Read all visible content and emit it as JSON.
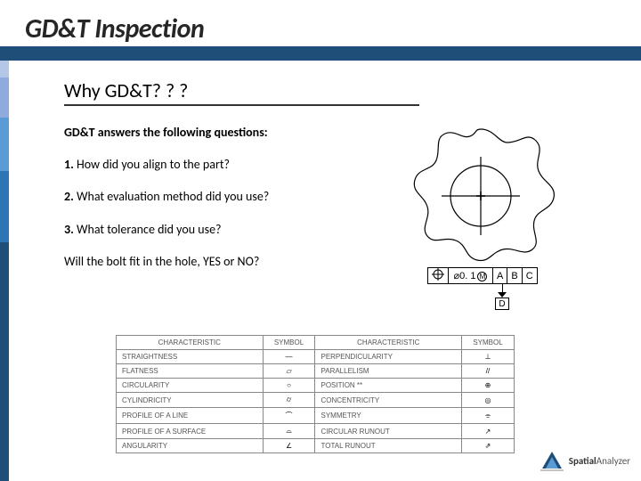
{
  "title": "GD&T Inspection",
  "subheading": "Why GD&T? ? ?",
  "lead": "GD&T answers the following questions:",
  "q1_num": "1.",
  "q1": " How did you align to the part?",
  "q2_num": "2.",
  "q2": " What evaluation method did you use?",
  "q3_num": "3.",
  "q3": " What tolerance did you use?",
  "closing": "Will the bolt fit in the hole, YES or NO?",
  "fcf": {
    "tol": "0. 1",
    "mod": "M",
    "d1": "A",
    "d2": "B",
    "d3": "C",
    "flag": "D"
  },
  "char_table": {
    "headers": [
      "CHARACTERISTIC",
      "SYMBOL",
      "CHARACTERISTIC",
      "SYMBOL"
    ],
    "rows": [
      {
        "l": "STRAIGHTNESS",
        "ls": "—",
        "r": "PERPENDICULARITY",
        "rs": "⊥"
      },
      {
        "l": "FLATNESS",
        "ls": "▱",
        "r": "PARALLELISM",
        "rs": "//"
      },
      {
        "l": "CIRCULARITY",
        "ls": "○",
        "r": "POSITION **",
        "rs": "⊕"
      },
      {
        "l": "CYLINDRICITY",
        "ls": "⌭",
        "r": "CONCENTRICITY",
        "rs": "◎"
      },
      {
        "l": "PROFILE OF A LINE",
        "ls": "⌒",
        "r": "SYMMETRY",
        "rs": "⌯"
      },
      {
        "l": "PROFILE OF A SURFACE",
        "ls": "⌓",
        "r": "CIRCULAR RUNOUT",
        "rs": "↗"
      },
      {
        "l": "ANGULARITY",
        "ls": "∠",
        "r": "TOTAL RUNOUT",
        "rs": "⇗"
      }
    ]
  },
  "colors": {
    "accent": "#1f4e79",
    "bar_segments": [
      "#b4c7e7",
      "#8faadc",
      "#5b9bd5",
      "#2e75b6",
      "#1f4e79",
      "#1f3864",
      "#203864"
    ]
  },
  "logo": {
    "bold": "Spatial",
    "rest": "Analyzer"
  }
}
